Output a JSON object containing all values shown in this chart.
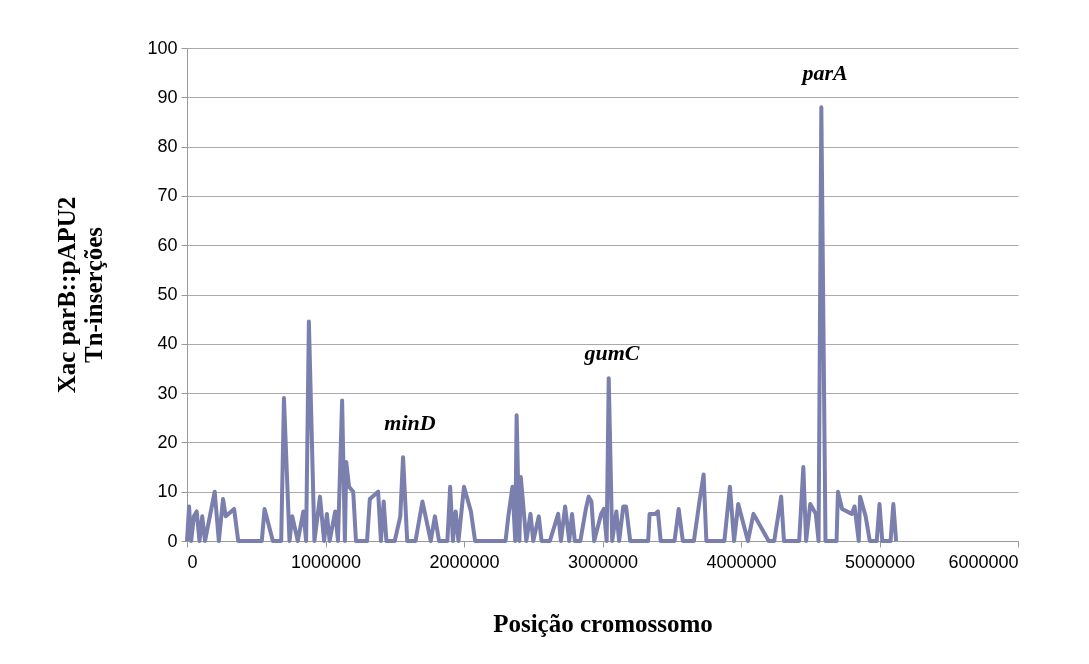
{
  "chart_data": {
    "type": "line",
    "xlabel": "Posição cromossomo",
    "ylabel": "Xac parB::pAPU2\nTn-inserções",
    "x": [
      0,
      15000,
      30000,
      50000,
      70000,
      90000,
      110000,
      130000,
      200000,
      230000,
      260000,
      280000,
      340000,
      370000,
      500000,
      540000,
      560000,
      620000,
      680000,
      700000,
      740000,
      760000,
      800000,
      840000,
      860000,
      880000,
      920000,
      960000,
      990000,
      1010000,
      1030000,
      1070000,
      1090000,
      1120000,
      1140000,
      1150000,
      1170000,
      1200000,
      1220000,
      1300000,
      1320000,
      1380000,
      1400000,
      1420000,
      1440000,
      1500000,
      1540000,
      1560000,
      1590000,
      1650000,
      1700000,
      1760000,
      1790000,
      1820000,
      1880000,
      1900000,
      1920000,
      1940000,
      1960000,
      2000000,
      2050000,
      2080000,
      2300000,
      2320000,
      2350000,
      2370000,
      2380000,
      2400000,
      2410000,
      2450000,
      2480000,
      2500000,
      2540000,
      2560000,
      2620000,
      2680000,
      2700000,
      2730000,
      2760000,
      2780000,
      2800000,
      2840000,
      2880000,
      2900000,
      2920000,
      2940000,
      2990000,
      3010000,
      3030000,
      3045000,
      3070000,
      3100000,
      3120000,
      3150000,
      3170000,
      3200000,
      3330000,
      3340000,
      3380000,
      3400000,
      3420000,
      3520000,
      3550000,
      3580000,
      3660000,
      3700000,
      3730000,
      3750000,
      3880000,
      3920000,
      3950000,
      3980000,
      4050000,
      4090000,
      4200000,
      4240000,
      4290000,
      4310000,
      4420000,
      4450000,
      4470000,
      4500000,
      4540000,
      4560000,
      4580000,
      4610000,
      4690000,
      4700000,
      4730000,
      4800000,
      4820000,
      4850000,
      4860000,
      4900000,
      4930000,
      4980000,
      5000000,
      5020000,
      5080000,
      5100000,
      5120000
    ],
    "series": [
      {
        "color": "#7b7fad",
        "values": [
          0,
          7,
          0,
          5,
          6,
          0,
          5,
          0,
          10,
          0,
          8.5,
          5,
          6.5,
          0,
          0,
          0,
          6.5,
          0,
          0,
          29,
          0,
          5,
          0,
          6,
          0,
          44.5,
          0,
          9,
          0,
          5.5,
          0,
          6,
          0,
          28.5,
          0,
          16,
          11,
          10,
          0,
          0,
          8.5,
          10,
          0,
          8,
          0,
          0,
          5,
          17,
          0,
          0,
          8,
          0,
          5,
          0,
          0,
          11,
          0,
          6,
          0,
          11,
          6,
          0,
          0,
          5,
          11,
          0,
          25.5,
          0,
          13,
          0,
          5.5,
          0,
          5,
          0,
          0,
          5.5,
          0,
          7,
          0,
          5.5,
          0,
          0,
          6.5,
          9,
          8,
          0,
          5.5,
          6.5,
          0,
          33,
          0,
          6,
          0,
          7,
          7,
          0,
          0,
          5.5,
          5.5,
          6,
          0,
          0,
          6.5,
          0,
          0,
          8,
          13.5,
          0,
          0,
          11,
          0,
          7.5,
          0,
          5.5,
          0,
          0,
          9,
          0,
          0,
          15,
          0,
          7.5,
          5.5,
          0,
          88,
          0,
          0,
          10,
          6.5,
          5.5,
          7,
          0,
          9,
          5,
          0,
          0,
          7.5,
          0,
          0,
          7.5,
          0
        ]
      }
    ],
    "xlim": [
      0,
      6000000
    ],
    "xticks": [
      0,
      1000000,
      2000000,
      3000000,
      4000000,
      5000000,
      6000000
    ],
    "ylim": [
      0,
      100
    ],
    "yticks": [
      0,
      10,
      20,
      30,
      40,
      50,
      60,
      70,
      80,
      90,
      100
    ],
    "grid": "y",
    "marker": "none",
    "line_style": "solid",
    "annotations": [
      "parA",
      "minD",
      "gumC"
    ]
  }
}
